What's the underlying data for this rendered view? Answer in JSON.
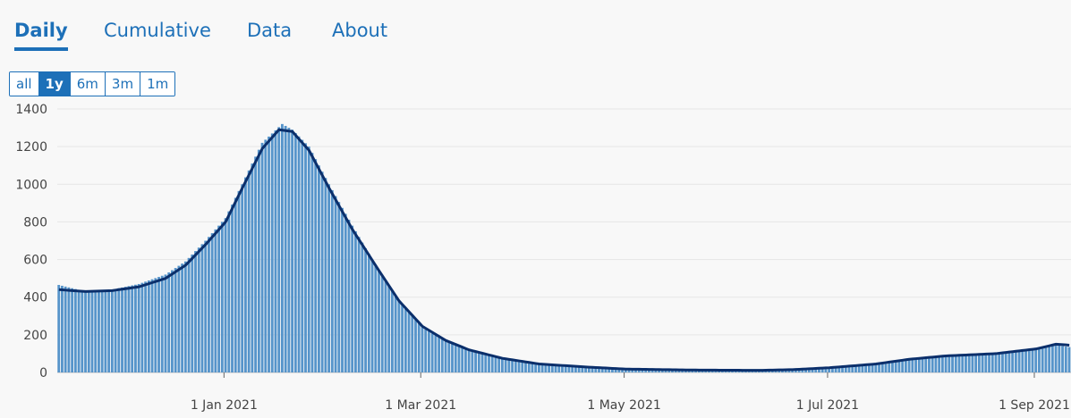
{
  "tabs": [
    {
      "label": "Daily",
      "active": true
    },
    {
      "label": "Cumulative",
      "active": false
    },
    {
      "label": "Data",
      "active": false
    },
    {
      "label": "About",
      "active": false
    }
  ],
  "range_buttons": [
    {
      "label": "all",
      "active": false
    },
    {
      "label": "1y",
      "active": true
    },
    {
      "label": "6m",
      "active": false
    },
    {
      "label": "3m",
      "active": false
    },
    {
      "label": "1m",
      "active": false
    }
  ],
  "colors": {
    "accent": "#1d70b8",
    "bar": "#5694ca",
    "line": "#0b2f6b",
    "grid": "#e6e6e6"
  },
  "chart_data": {
    "type": "bar",
    "x_start": "2020-11-12",
    "x_end": "2021-09-11",
    "ylim": [
      0,
      1400
    ],
    "yticks": [
      0,
      200,
      400,
      600,
      800,
      1000,
      1200,
      1400
    ],
    "xticks": [
      {
        "date": "2021-01-01",
        "label": "1 Jan 2021"
      },
      {
        "date": "2021-03-01",
        "label": "1 Mar 2021"
      },
      {
        "date": "2021-05-01",
        "label": "1 May 2021"
      },
      {
        "date": "2021-07-01",
        "label": "1 Jul 2021"
      },
      {
        "date": "2021-09-01",
        "label": "1 Sep 2021"
      }
    ],
    "grid": true,
    "series": [
      {
        "kind": "bars",
        "anchors": [
          [
            "2020-11-12",
            465
          ],
          [
            "2020-11-20",
            430
          ],
          [
            "2020-11-28",
            440
          ],
          [
            "2020-12-06",
            470
          ],
          [
            "2020-12-14",
            520
          ],
          [
            "2020-12-20",
            590
          ],
          [
            "2020-12-26",
            700
          ],
          [
            "2021-01-01",
            820
          ],
          [
            "2021-01-06",
            1000
          ],
          [
            "2021-01-12",
            1220
          ],
          [
            "2021-01-18",
            1320
          ],
          [
            "2021-01-21",
            1290
          ],
          [
            "2021-01-26",
            1200
          ],
          [
            "2021-02-01",
            1000
          ],
          [
            "2021-02-08",
            780
          ],
          [
            "2021-02-16",
            540
          ],
          [
            "2021-02-22",
            380
          ],
          [
            "2021-03-01",
            240
          ],
          [
            "2021-03-08",
            165
          ],
          [
            "2021-03-15",
            120
          ],
          [
            "2021-03-25",
            75
          ],
          [
            "2021-04-05",
            45
          ],
          [
            "2021-04-20",
            28
          ],
          [
            "2021-05-01",
            18
          ],
          [
            "2021-05-20",
            13
          ],
          [
            "2021-06-10",
            11
          ],
          [
            "2021-06-20",
            15
          ],
          [
            "2021-07-01",
            25
          ],
          [
            "2021-07-15",
            45
          ],
          [
            "2021-07-25",
            70
          ],
          [
            "2021-08-05",
            90
          ],
          [
            "2021-08-20",
            100
          ],
          [
            "2021-09-01",
            120
          ],
          [
            "2021-09-07",
            145
          ],
          [
            "2021-09-11",
            135
          ]
        ]
      },
      {
        "kind": "rolling-average-line",
        "anchors": [
          [
            "2020-11-12",
            440
          ],
          [
            "2020-11-20",
            430
          ],
          [
            "2020-11-28",
            435
          ],
          [
            "2020-12-06",
            455
          ],
          [
            "2020-12-14",
            500
          ],
          [
            "2020-12-20",
            570
          ],
          [
            "2020-12-26",
            680
          ],
          [
            "2021-01-01",
            800
          ],
          [
            "2021-01-06",
            980
          ],
          [
            "2021-01-12",
            1190
          ],
          [
            "2021-01-17",
            1290
          ],
          [
            "2021-01-21",
            1280
          ],
          [
            "2021-01-26",
            1180
          ],
          [
            "2021-02-01",
            980
          ],
          [
            "2021-02-08",
            760
          ],
          [
            "2021-02-16",
            540
          ],
          [
            "2021-02-22",
            380
          ],
          [
            "2021-03-01",
            245
          ],
          [
            "2021-03-08",
            170
          ],
          [
            "2021-03-15",
            120
          ],
          [
            "2021-03-25",
            75
          ],
          [
            "2021-04-05",
            45
          ],
          [
            "2021-04-20",
            28
          ],
          [
            "2021-05-01",
            18
          ],
          [
            "2021-05-20",
            13
          ],
          [
            "2021-06-10",
            11
          ],
          [
            "2021-06-20",
            15
          ],
          [
            "2021-07-01",
            25
          ],
          [
            "2021-07-15",
            45
          ],
          [
            "2021-07-25",
            70
          ],
          [
            "2021-08-05",
            88
          ],
          [
            "2021-08-20",
            100
          ],
          [
            "2021-09-01",
            125
          ],
          [
            "2021-09-07",
            150
          ],
          [
            "2021-09-11",
            145
          ]
        ]
      }
    ]
  }
}
